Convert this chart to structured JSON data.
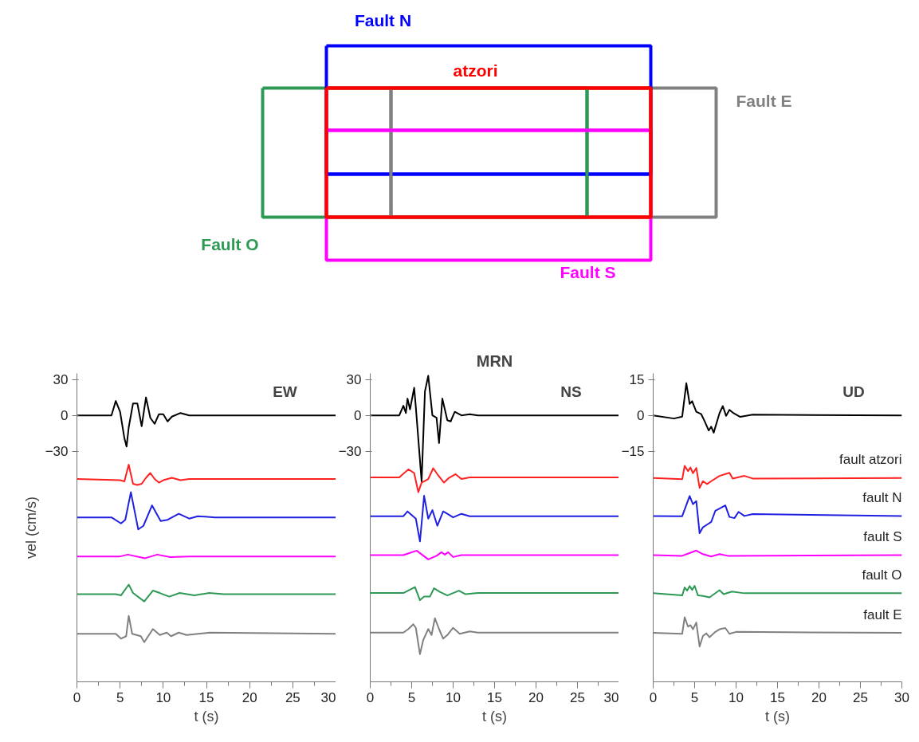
{
  "chart_data": [
    {
      "type": "other",
      "series": [
        {
          "name": "Fault N",
          "color": "#0000ff"
        },
        {
          "name": "atzori",
          "color": "#ff0000"
        },
        {
          "name": "Fault E",
          "color": "#808080"
        },
        {
          "name": "Fault O",
          "color": "#2e9955"
        },
        {
          "name": "Fault S",
          "color": "#ff00ff"
        }
      ]
    },
    {
      "type": "line",
      "title": "EW",
      "xlabel": "t (s)",
      "ylabel": "vel (cm/s)",
      "xlim": [
        0,
        30
      ],
      "xticks": [
        0,
        5,
        10,
        15,
        20,
        25,
        30
      ],
      "ylim": [
        -222,
        35
      ],
      "yticks": [
        30,
        0,
        -30
      ],
      "series": [
        {
          "color": "#000000",
          "x": [
            0,
            4,
            4.5,
            5,
            5.5,
            5.75,
            6,
            6.5,
            7,
            7.5,
            8,
            8.5,
            9,
            9.5,
            10,
            10.5,
            11,
            12,
            13,
            15,
            20,
            30
          ],
          "values": [
            0,
            0,
            12,
            3,
            -19,
            -26,
            -10,
            10,
            10,
            -9,
            15,
            -2,
            -7,
            1,
            1,
            -5,
            -1,
            2,
            0,
            0,
            0,
            0
          ]
        },
        {
          "color": "#ff2020",
          "x": [
            0,
            5,
            5.5,
            6,
            6.5,
            7,
            7.5,
            8,
            8.5,
            9,
            9.5,
            10,
            11,
            12,
            13,
            30
          ],
          "values": [
            -53,
            -54,
            -55,
            -41,
            -57,
            -58,
            -57,
            -52,
            -48,
            -53,
            -56,
            -54,
            -52,
            -54,
            -53,
            -53
          ]
        },
        {
          "color": "#2020e0",
          "x": [
            0,
            4,
            5.1,
            5.6,
            6.25,
            7.1,
            7.7,
            8.7,
            9.7,
            10.5,
            11.8,
            13,
            14,
            16,
            30
          ],
          "values": [
            -85,
            -85,
            -90,
            -87,
            -64,
            -95,
            -92,
            -75,
            -88,
            -87,
            -82,
            -86,
            -84,
            -85,
            -85
          ]
        },
        {
          "color": "#ff00ff",
          "x": [
            0,
            5,
            5.9,
            7.9,
            9.3,
            10.8,
            13,
            30
          ],
          "values": [
            -117.5,
            -117.5,
            -116,
            -119,
            -116,
            -118,
            -117.5,
            -117.5
          ]
        },
        {
          "color": "#2e9955",
          "x": [
            0,
            4.5,
            5.1,
            6,
            6.5,
            7.8,
            8.8,
            9.6,
            10.7,
            11.9,
            13.6,
            15.3,
            17,
            30
          ],
          "values": [
            -149,
            -149,
            -150,
            -141,
            -148,
            -155,
            -146,
            -148,
            -151,
            -148,
            -150,
            -148,
            -149,
            -149
          ]
        },
        {
          "color": "#808080",
          "x": [
            0,
            4.5,
            5.1,
            5.7,
            6,
            6.4,
            7.4,
            7.8,
            8.8,
            9.6,
            10.4,
            10.9,
            11.8,
            12.7,
            15.4,
            30
          ],
          "values": [
            -182,
            -182,
            -186,
            -184,
            -167,
            -182,
            -184,
            -189,
            -178,
            -183,
            -181,
            -184,
            -181,
            -183,
            -181,
            -182
          ]
        }
      ]
    },
    {
      "type": "line",
      "title": "NS",
      "annotations": [
        "MRN"
      ],
      "xlabel": "t (s)",
      "xlim": [
        0,
        30
      ],
      "xticks": [
        0,
        5,
        10,
        15,
        20,
        25,
        30
      ],
      "ylim": [
        -222,
        35
      ],
      "yticks": [
        30,
        0,
        -30
      ],
      "series": [
        {
          "color": "#000000",
          "x": [
            0,
            3.5,
            4,
            4.3,
            4.5,
            4.8,
            5.3,
            5.5,
            6.2,
            6.6,
            7,
            7.5,
            8,
            8.3,
            8.7,
            9.3,
            9.7,
            10.2,
            11,
            12,
            13,
            30
          ],
          "values": [
            0,
            0,
            8,
            2,
            14,
            5,
            23,
            7,
            -55,
            20,
            33,
            0,
            -2,
            -23,
            14,
            -4,
            -5,
            3,
            0,
            1,
            0,
            0
          ]
        },
        {
          "color": "#ff2020",
          "x": [
            0,
            3.5,
            4.6,
            5.3,
            5.8,
            6.2,
            7,
            7.6,
            8.2,
            8.9,
            9.5,
            10.3,
            11,
            12,
            30
          ],
          "values": [
            -51.6,
            -51.6,
            -45,
            -48,
            -64,
            -56,
            -53,
            -44,
            -50,
            -56,
            -52,
            -49,
            -53,
            -51.6,
            -51.6
          ]
        },
        {
          "color": "#2020e0",
          "x": [
            0,
            4,
            4.5,
            5.5,
            6,
            6.5,
            7,
            7.5,
            8.1,
            8.8,
            9.3,
            10,
            11,
            12,
            30
          ],
          "values": [
            -84,
            -84,
            -80,
            -86,
            -105,
            -67,
            -86,
            -79,
            -92,
            -80,
            -82,
            -85,
            -82,
            -84,
            -84
          ]
        },
        {
          "color": "#ff00ff",
          "x": [
            0,
            4,
            5.6,
            7,
            8,
            8.6,
            9,
            9.4,
            10,
            11,
            30
          ],
          "values": [
            -116.4,
            -116.4,
            -112.7,
            -120,
            -117,
            -114,
            -116,
            -114,
            -118,
            -116.4,
            -116.4
          ]
        },
        {
          "color": "#2e9955",
          "x": [
            0,
            4,
            5.4,
            6,
            6.5,
            7.2,
            7.7,
            8.4,
            9.3,
            10.7,
            11.5,
            13,
            30
          ],
          "values": [
            -148,
            -148,
            -143,
            -154,
            -151,
            -151,
            -144,
            -147,
            -150,
            -146,
            -149,
            -148,
            -148
          ]
        },
        {
          "color": "#808080",
          "x": [
            0,
            4,
            4.6,
            5.2,
            5.5,
            6,
            6.4,
            7,
            7.4,
            7.8,
            8.3,
            8.8,
            9.3,
            10,
            10.8,
            12,
            13,
            30
          ],
          "values": [
            -181,
            -181,
            -178,
            -174,
            -177,
            -199,
            -187,
            -178,
            -183,
            -169,
            -178,
            -186,
            -183,
            -177,
            -182,
            -180,
            -181,
            -181
          ]
        }
      ]
    },
    {
      "type": "line",
      "title": "UD",
      "xlabel": "t (s)",
      "xlim": [
        0,
        30
      ],
      "xticks": [
        0,
        5,
        10,
        15,
        20,
        25,
        30
      ],
      "ylim": [
        -111,
        17.5
      ],
      "yticks": [
        15,
        0,
        -15
      ],
      "series": [
        {
          "color": "#000000",
          "x": [
            0,
            2.5,
            3.5,
            4,
            4.4,
            4.7,
            5.2,
            5.8,
            6.2,
            6.7,
            7,
            7.3,
            8,
            8.4,
            8.8,
            9.2,
            9.7,
            10.5,
            12,
            30
          ],
          "values": [
            0,
            -1.3,
            -0.5,
            13.4,
            4.8,
            5.9,
            1.5,
            0.5,
            -2.4,
            -6.3,
            -4.7,
            -7.2,
            0.9,
            3.9,
            -0.2,
            2.3,
            0.9,
            -0.6,
            0.3,
            0
          ]
        },
        {
          "name": "fault atzori",
          "color": "#ff2020",
          "x": [
            0,
            3.5,
            3.8,
            4.2,
            4.5,
            4.8,
            5.2,
            5.6,
            6,
            6.5,
            7,
            8,
            9.2,
            9.6,
            11,
            12,
            30
          ],
          "values": [
            -26.1,
            -26.6,
            -21,
            -23.2,
            -21.7,
            -24.1,
            -21.9,
            -30.2,
            -27.4,
            -28.6,
            -27.4,
            -25.2,
            -23.9,
            -26.3,
            -25.2,
            -26.3,
            -26.1
          ]
        },
        {
          "name": "fault N",
          "color": "#2020e0",
          "x": [
            0,
            3,
            3.5,
            4.4,
            4.8,
            5.2,
            5.6,
            6,
            6.5,
            7,
            7.5,
            8,
            8.7,
            9.2,
            9.8,
            10.3,
            11,
            12,
            30
          ],
          "values": [
            -41.9,
            -42,
            -42,
            -33.6,
            -37,
            -35.7,
            -49.1,
            -46.6,
            -45.5,
            -44.4,
            -39.7,
            -38.8,
            -37.5,
            -42.3,
            -42.8,
            -40.2,
            -41.9,
            -41.1,
            -41.9
          ]
        },
        {
          "name": "fault S",
          "color": "#ff00ff",
          "x": [
            0,
            3.5,
            4.5,
            5.2,
            6,
            7,
            8,
            9,
            30
          ],
          "values": [
            -58.2,
            -58.5,
            -57.2,
            -56.3,
            -57.8,
            -58.8,
            -57.8,
            -58.5,
            -58.2
          ]
        },
        {
          "name": "fault O",
          "color": "#2e9955",
          "x": [
            0,
            3.5,
            3.8,
            4.1,
            4.4,
            4.7,
            5,
            5.4,
            6,
            6.8,
            8,
            8.5,
            9.5,
            11,
            30
          ],
          "values": [
            -74.1,
            -75,
            -71.7,
            -73,
            -71.1,
            -72.7,
            -71,
            -75,
            -75.2,
            -75.8,
            -72.8,
            -74.5,
            -73.4,
            -74.1,
            -74.1
          ]
        },
        {
          "name": "fault E",
          "color": "#808080",
          "x": [
            0,
            3.5,
            3.8,
            4.2,
            4.5,
            4.8,
            5.2,
            5.6,
            6,
            6.4,
            6.8,
            7.5,
            8,
            8.7,
            9.2,
            10,
            30
          ],
          "values": [
            -90.6,
            -91,
            -84.1,
            -88,
            -87.4,
            -89.1,
            -86.3,
            -96.3,
            -91.9,
            -90.8,
            -92.4,
            -90.2,
            -89.1,
            -88.6,
            -91,
            -90.2,
            -90.6
          ]
        }
      ]
    }
  ]
}
